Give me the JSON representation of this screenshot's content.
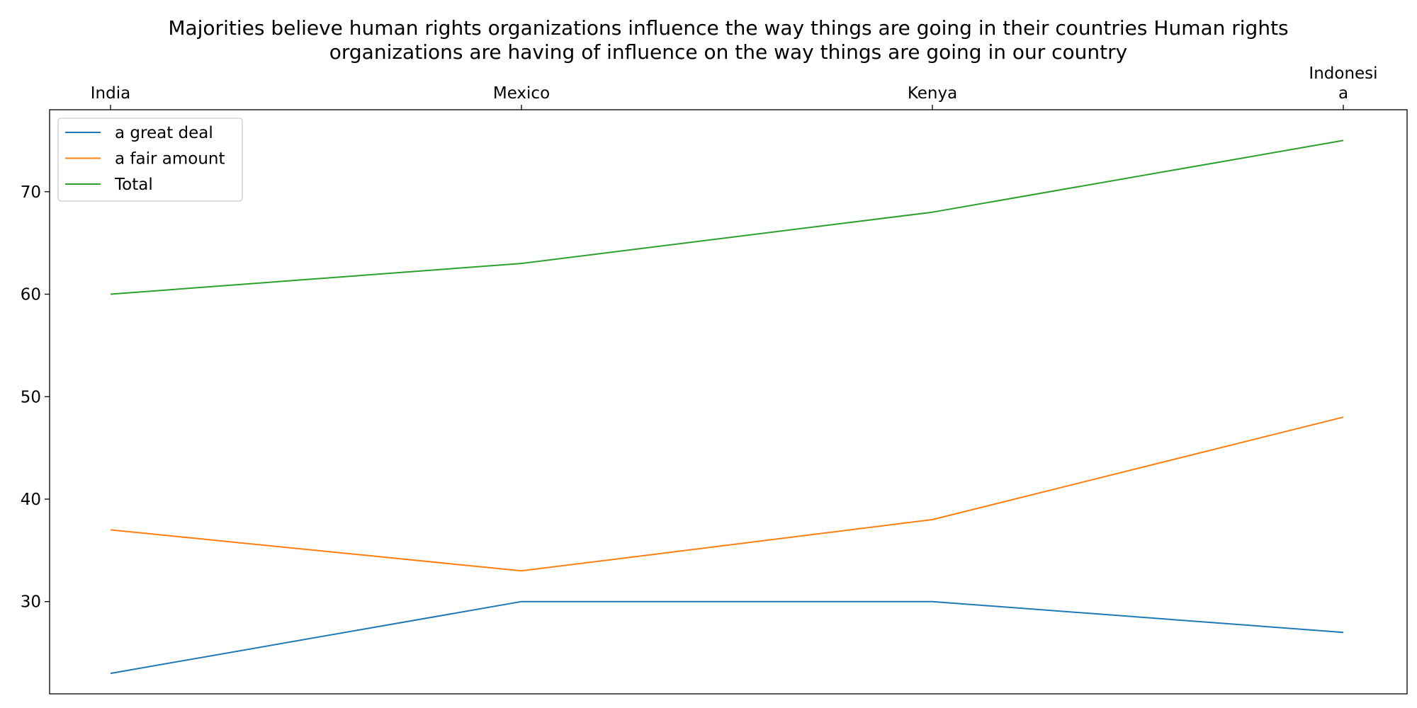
{
  "chart_data": {
    "type": "line",
    "title": "Majorities believe human rights organizations influence the way things are going in their countries Human rights organizations are having of influence on the way things are going in our country",
    "title_lines": [
      "Majorities believe human rights organizations influence the way things are going in their countries Human rights",
      "organizations are having of influence on the way things are going in our country"
    ],
    "categories": [
      "India",
      "Mexico",
      "Kenya",
      "Indonesia"
    ],
    "category_tick_lines": [
      [
        "India"
      ],
      [
        "Mexico"
      ],
      [
        "Kenya"
      ],
      [
        "Indonesi",
        "a"
      ]
    ],
    "x_axis_position": "top",
    "xlabel": "",
    "ylabel": "",
    "ylim": [
      21,
      78
    ],
    "yticks": [
      30,
      40,
      50,
      60,
      70
    ],
    "grid": false,
    "legend_position": "top-left",
    "series": [
      {
        "name": "a great deal",
        "color": "#1f77b4",
        "values": [
          23,
          30,
          30,
          27
        ]
      },
      {
        "name": "a fair amount",
        "color": "#ff7f0e",
        "values": [
          37,
          33,
          38,
          48
        ]
      },
      {
        "name": "Total",
        "color": "#2ca02c",
        "values": [
          60,
          63,
          68,
          75
        ]
      }
    ]
  }
}
